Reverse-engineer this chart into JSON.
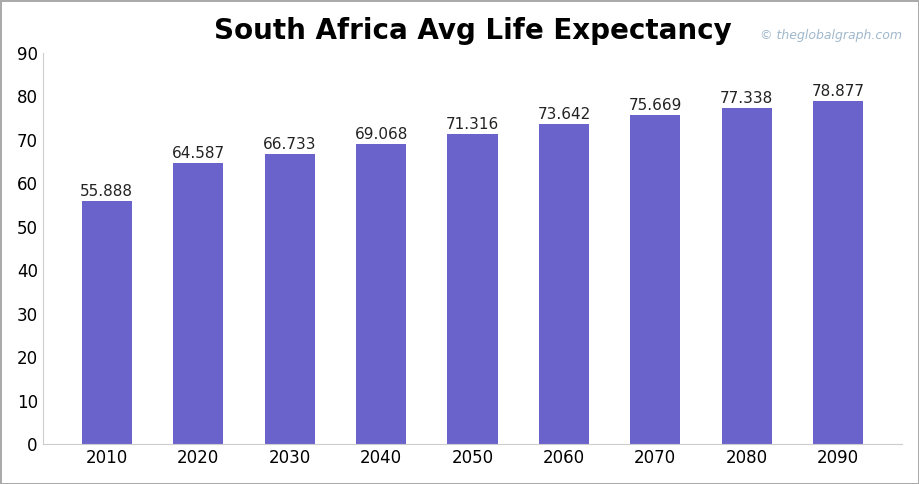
{
  "title": "South Africa Avg Life Expectancy",
  "watermark": "© theglobalgraph.com",
  "categories": [
    2010,
    2020,
    2030,
    2040,
    2050,
    2060,
    2070,
    2080,
    2090
  ],
  "values": [
    55.888,
    64.587,
    66.733,
    69.068,
    71.316,
    73.642,
    75.669,
    77.338,
    78.877
  ],
  "bar_color": "#6B63CC",
  "ylim": [
    0,
    90
  ],
  "yticks": [
    0,
    10,
    20,
    30,
    40,
    50,
    60,
    70,
    80,
    90
  ],
  "title_fontsize": 20,
  "label_fontsize": 11,
  "tick_fontsize": 12,
  "watermark_color": "#a0b8cc",
  "watermark_fontsize": 9,
  "background_color": "#ffffff",
  "border_color": "#aaaaaa"
}
